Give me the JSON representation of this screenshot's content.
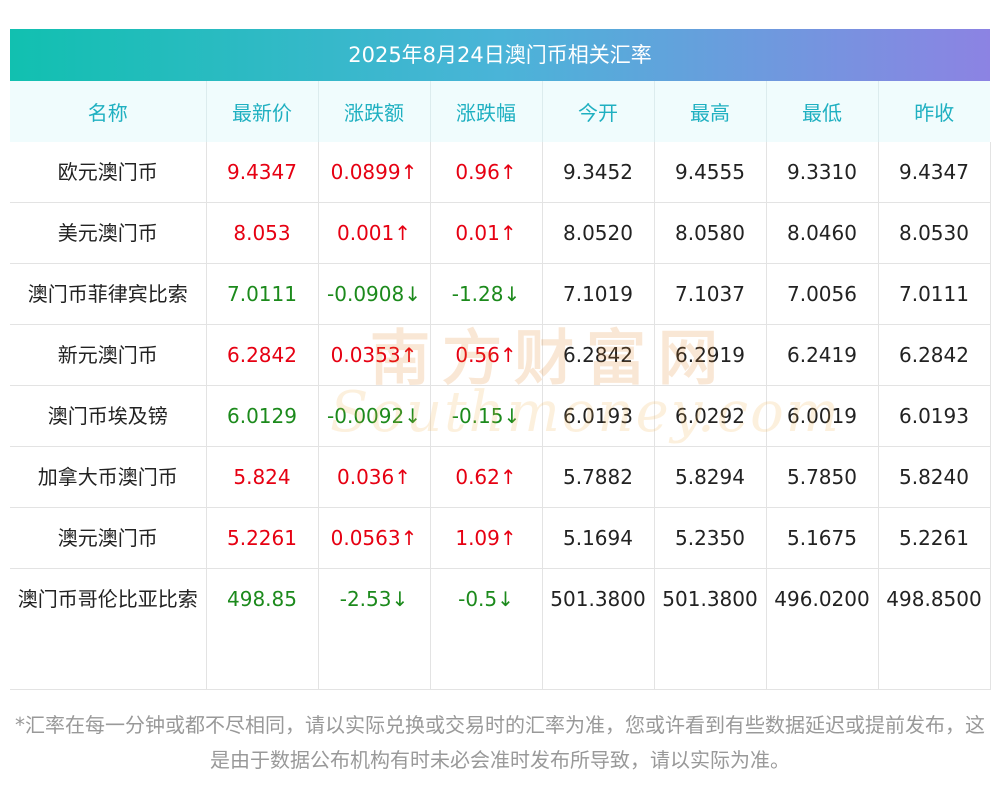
{
  "title": "2025年8月24日澳门币相关汇率",
  "columns": [
    "名称",
    "最新价",
    "涨跌额",
    "涨跌幅",
    "今开",
    "最高",
    "最低",
    "昨收"
  ],
  "rows": [
    {
      "name": "欧元澳门币",
      "latest": "9.4347",
      "change": "0.0899↑",
      "pct": "0.96↑",
      "open": "9.3452",
      "high": "9.4555",
      "low": "9.3310",
      "prev": "9.4347",
      "dir": "up"
    },
    {
      "name": "美元澳门币",
      "latest": "8.053",
      "change": "0.001↑",
      "pct": "0.01↑",
      "open": "8.0520",
      "high": "8.0580",
      "low": "8.0460",
      "prev": "8.0530",
      "dir": "up"
    },
    {
      "name": "澳门币菲律宾比索",
      "latest": "7.0111",
      "change": "-0.0908↓",
      "pct": "-1.28↓",
      "open": "7.1019",
      "high": "7.1037",
      "low": "7.0056",
      "prev": "7.0111",
      "dir": "down"
    },
    {
      "name": "新元澳门币",
      "latest": "6.2842",
      "change": "0.0353↑",
      "pct": "0.56↑",
      "open": "6.2842",
      "high": "6.2919",
      "low": "6.2419",
      "prev": "6.2842",
      "dir": "up"
    },
    {
      "name": "澳门币埃及镑",
      "latest": "6.0129",
      "change": "-0.0092↓",
      "pct": "-0.15↓",
      "open": "6.0193",
      "high": "6.0292",
      "low": "6.0019",
      "prev": "6.0193",
      "dir": "down"
    },
    {
      "name": "加拿大币澳门币",
      "latest": "5.824",
      "change": "0.036↑",
      "pct": "0.62↑",
      "open": "5.7882",
      "high": "5.8294",
      "low": "5.7850",
      "prev": "5.8240",
      "dir": "up"
    },
    {
      "name": "澳元澳门币",
      "latest": "5.2261",
      "change": "0.0563↑",
      "pct": "1.09↑",
      "open": "5.1694",
      "high": "5.2350",
      "low": "5.1675",
      "prev": "5.2261",
      "dir": "up"
    },
    {
      "name": "澳门币哥伦比亚比索",
      "latest": "498.85",
      "change": "-2.53↓",
      "pct": "-0.5↓",
      "open": "501.3800",
      "high": "501.3800",
      "low": "496.0200",
      "prev": "498.8500",
      "dir": "down"
    }
  ],
  "watermark": {
    "cn": "南方财富网",
    "en": "Southmoney.com"
  },
  "footnote": "*汇率在每一分钟或都不尽相同，请以实际兑换或交易时的汇率为准，您或许看到有些数据延迟或提前发布，这是由于数据公布机构有时未必会准时发布所导致，请以实际为准。",
  "colors": {
    "up": "#e60012",
    "down": "#1c8a1c",
    "header_text": "#1fb0c1"
  }
}
